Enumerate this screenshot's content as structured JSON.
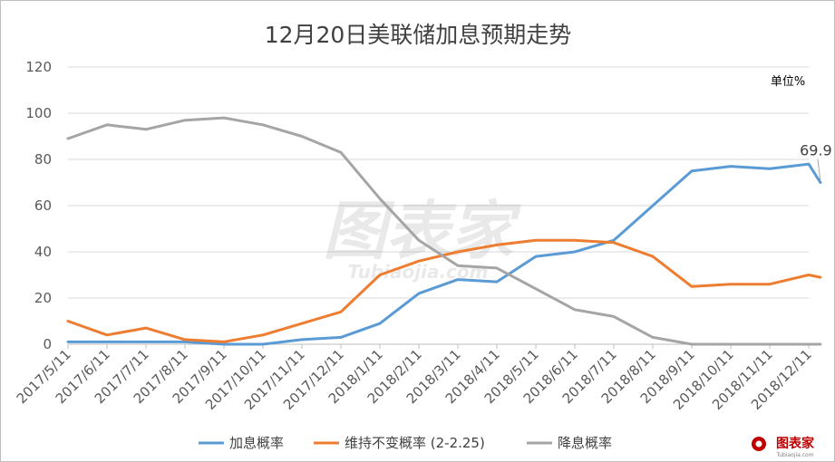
{
  "chart_data": {
    "type": "line",
    "title": "12月20日美联储加息预期走势",
    "unit_label": "单位%",
    "ylim": [
      0,
      120
    ],
    "yticks": [
      "0",
      "20",
      "40",
      "60",
      "80",
      "100",
      "120"
    ],
    "x_ticks": [
      "2017/5/11",
      "2017/6/11",
      "2017/7/11",
      "2017/8/11",
      "2017/9/11",
      "2017/10/11",
      "2017/11/11",
      "2017/12/11",
      "2018/1/11",
      "2018/2/11",
      "2018/3/11",
      "2018/4/11",
      "2018/5/11",
      "2018/6/11",
      "2018/7/11",
      "2018/8/11",
      "2018/9/11",
      "2018/10/11",
      "2018/11/11",
      "2018/12/11"
    ],
    "grid": true,
    "legend_position": "bottom",
    "annotation": {
      "text": "69.9"
    },
    "series": [
      {
        "name": "加息概率",
        "color": "#5B9BD5",
        "x": [
          0,
          1,
          2,
          3,
          4,
          5,
          6,
          7,
          8,
          9,
          10,
          11,
          12,
          13,
          14,
          15,
          16,
          17,
          18,
          19,
          19.3
        ],
        "values": [
          1,
          1,
          1,
          1,
          0,
          0,
          2,
          3,
          9,
          22,
          28,
          27,
          38,
          40,
          45,
          60,
          75,
          77,
          76,
          78,
          70
        ]
      },
      {
        "name": "维持不变概率 (2-2.25)",
        "color": "#ED7D31",
        "x": [
          0,
          1,
          2,
          3,
          4,
          5,
          6,
          7,
          8,
          9,
          10,
          11,
          12,
          13,
          14,
          15,
          16,
          17,
          18,
          19,
          19.3
        ],
        "values": [
          10,
          4,
          7,
          2,
          1,
          4,
          9,
          14,
          30,
          36,
          40,
          43,
          45,
          45,
          44,
          38,
          25,
          26,
          26,
          30,
          29
        ]
      },
      {
        "name": "降息概率",
        "color": "#A5A5A5",
        "x": [
          0,
          1,
          2,
          3,
          4,
          5,
          6,
          7,
          8,
          9,
          10,
          11,
          12,
          13,
          14,
          15,
          16,
          17,
          18,
          19,
          19.3
        ],
        "values": [
          89,
          95,
          93,
          97,
          98,
          95,
          90,
          83,
          63,
          45,
          34,
          33,
          24,
          15,
          12,
          3,
          0,
          0,
          0,
          0,
          0
        ]
      }
    ]
  },
  "watermark": {
    "main": "图表家",
    "sub": "Tubiaojia.com"
  },
  "logo": {
    "text": "图表家",
    "sub": "Tubiaojia.com"
  }
}
